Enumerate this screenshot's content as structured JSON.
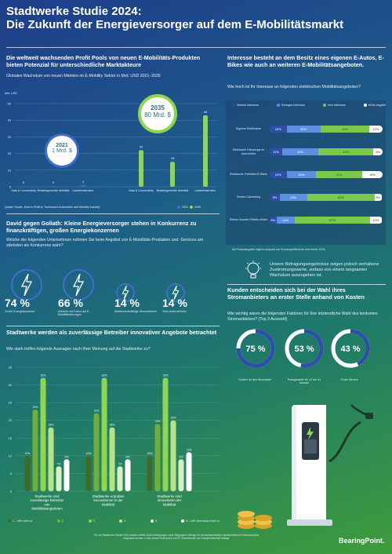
{
  "title_line1": "Stadtwerke Studie 2024:",
  "title_line2": "Die Zukunft der Energieversorger auf dem E-Mobilitätsmarkt",
  "profit": {
    "title": "Die weltweit wachsenden Profit Pools von neuen E-Mobilitäts-Produkten bieten Potenzial für unterschiedliche Marktakteure",
    "subtitle": "Globales Wachstum von neuen Märkten im E-Mobility Sektor in Mrd. USD 2021–2035",
    "unit": "Mrd. USD",
    "bubble_2021_year": "2021",
    "bubble_2021_value": "1 Mrd. $",
    "bubble_2035_year": "2035",
    "bubble_2035_value": "80 Mrd. $",
    "source": "Quelle: Studie „How to Profit in Tomorrow’s Automotive and Mobility Industry“",
    "legend_2021": "2021",
    "legend_2035": "2035",
    "chart_data": {
      "type": "bar",
      "categories": [
        "Data & Connectivity",
        "Bedarfsgerechte Mobilität",
        "Ladeinfrastruktur",
        "Data & Connectivity",
        "Bedarfsgerechte Mobilität",
        "Ladeinfrastruktur"
      ],
      "values": [
        0,
        0,
        1,
        22,
        15,
        43
      ],
      "value_labels": [
        "0",
        "0",
        "1",
        "22",
        "15",
        "43"
      ],
      "ylim": [
        0,
        50
      ],
      "yticks": [
        "50",
        "40",
        "30",
        "20",
        "10",
        "0"
      ],
      "colors": [
        "#3d6fd0",
        "#3d6fd0",
        "#3d6fd0",
        "#8fd650",
        "#8fd650",
        "#8fd650"
      ]
    }
  },
  "interest": {
    "title": "Interesse besteht an dem Besitz eines eigenen E-Autos, E-Bikes wie auch an weiteren E-Mobilitätsangeboten.",
    "question": "Wie hoch ist Ihr Interesse an folgenden elektrischen Mobilitätsangeboten?",
    "legend": [
      "Starkes Interesse",
      "Geringes Interesse",
      "Kein Interesse",
      "Keine Angabe"
    ],
    "colors": [
      "#2d4fa8",
      "#5d8fe0",
      "#7cc84a",
      "#ffffff"
    ],
    "note": "Die Prozentangaben ergeben aufgrund von Rundungsdifferenzen nicht immer 100%",
    "chart_data": {
      "type": "bar",
      "categories": [
        "Eigenes Elektroauto",
        "Elektrische Fahrzeuge im Autoverleih",
        "Elektrische Fahrräder/E-Bikes",
        "Elektro-Carsharing",
        "Elektro-Scooter/ Elektro-Roller"
      ],
      "series": [
        {
          "name": "Starkes Interesse",
          "values": [
            15,
            11,
            15,
            9,
            6
          ]
        },
        {
          "name": "Geringes Interesse",
          "values": [
            30,
            32,
            26,
            24,
            16
          ]
        },
        {
          "name": "Kein Interesse",
          "values": [
            43,
            49,
            41,
            60,
            67
          ]
        },
        {
          "name": "Keine Angabe",
          "values": [
            12,
            8,
            18,
            6,
            10
          ]
        }
      ],
      "labels": [
        [
          "15%",
          "30%",
          "43%",
          "12%"
        ],
        [
          "11%",
          "32%",
          "49%",
          "8%"
        ],
        [
          "15%",
          "26%",
          "41%",
          "18%"
        ],
        [
          "9%",
          "24%",
          "60%",
          "6%"
        ],
        [
          "6%",
          "16%",
          "67%",
          "10%"
        ]
      ]
    }
  },
  "goliath": {
    "title": "David gegen Goliath: Kleine Energieversorger stehen in Konkurrenz zu finanzkräftigen, großen Energiekonzernen",
    "question": "Welche der folgenden Unternehmen nehmen Sie beim Angebot von E-Mobilitäts-Produkten und -Services am stärksten als Konkurrenz wahr?",
    "items": [
      {
        "pct": "74 %",
        "label": "Große Energiekonzerne"
      },
      {
        "pct": "66 %",
        "label": "Anbieter mit Fokus auf E-Mobilitätslösungen"
      },
      {
        "pct": "14 %",
        "label": "Wettbewerbsfähige Stromanbieter"
      },
      {
        "pct": "14 %",
        "label": "Tech-Unternehmen"
      }
    ]
  },
  "growth_text": "Unsere Befragungsergebnisse zeigen jedoch verhaltene Zustimmungswerte, sodass von einem langsamen Wachstum auszugehen ist.",
  "kosten": {
    "title": "Kunden entscheiden sich bei der Wahl ihres Stromanbieters an erster Stelle anhand von Kosten",
    "question": "Wie wichtig waren die folgenden Faktoren für Ihre letztendliche Wahl des konkreten Stromanbieters? (Top 3 Auswahl)",
    "items": [
      {
        "pct": "75 %",
        "label": "Kosten für den Strom/tarif",
        "fill": 0.75
      },
      {
        "pct": "53 %",
        "label": "Preisgarantie für 12 der 24 Monate",
        "fill": 0.53
      },
      {
        "pct": "43 %",
        "label": "Guter Service",
        "fill": 0.43
      }
    ]
  },
  "stadtwerke": {
    "title": "Stadtwerke werden als zuverlässige Betreiber innovativer Angebote betrachtet",
    "question": "Wie stark treffen folgende Aussagen nach Ihrer Meinung auf die Stadtwerke zu?",
    "legend": [
      "1 – trifft nicht zu",
      "2",
      "3",
      "4",
      "5",
      "6 – trifft überhaupt nicht zu"
    ],
    "chart_data": {
      "type": "bar",
      "categories": [
        "Stadtwerke sind zuverlässige Betreiber von Mobilitätsangeboten",
        "Stadtwerke erproben Innovationen in der Mobilität",
        "Stadtwerke sind Innovatoren der Mobilität"
      ],
      "series": [
        {
          "name": "1",
          "values": [
            10,
            10,
            10
          ]
        },
        {
          "name": "2",
          "values": [
            23,
            22,
            19
          ]
        },
        {
          "name": "3",
          "values": [
            32,
            32,
            32
          ]
        },
        {
          "name": "4",
          "values": [
            18,
            18,
            20
          ]
        },
        {
          "name": "5",
          "values": [
            7,
            7,
            9
          ]
        },
        {
          "name": "6",
          "values": [
            9,
            9,
            11
          ]
        }
      ],
      "value_labels": [
        [
          "10%",
          "23%",
          "32%",
          "18%",
          "7%",
          "9%"
        ],
        [
          "10%",
          "22%",
          "32%",
          "18%",
          "7%",
          "9%"
        ],
        [
          "10%",
          "19%",
          "32%",
          "20%",
          "9%",
          "11%"
        ]
      ],
      "ylim": [
        0,
        35
      ],
      "yticks": [
        "35",
        "30",
        "25",
        "20",
        "15",
        "10",
        "5",
        "0"
      ],
      "colors": [
        "#3d6b2a",
        "#6fae3a",
        "#8fd650",
        "#b6e38a",
        "#d7efc2",
        "#ffffff"
      ]
    }
  },
  "footer_note_1": "Für die Stadtwerke Studie 2024 wurden mittels Onlinebefragungen zwei Zielgruppen befragt: ein deutschlandweites repräsentatives Endkundenpanel",
  "footer_note_2": "Insgesamt wurden 1.016 private Endkunden und 57 Unternehmen der Energiewirtschaft befragt.",
  "brand": "BearingPoint.",
  "icons": [
    "lightning-icon",
    "lightbulb-icon",
    "charging-station-icon",
    "coins-icon"
  ]
}
